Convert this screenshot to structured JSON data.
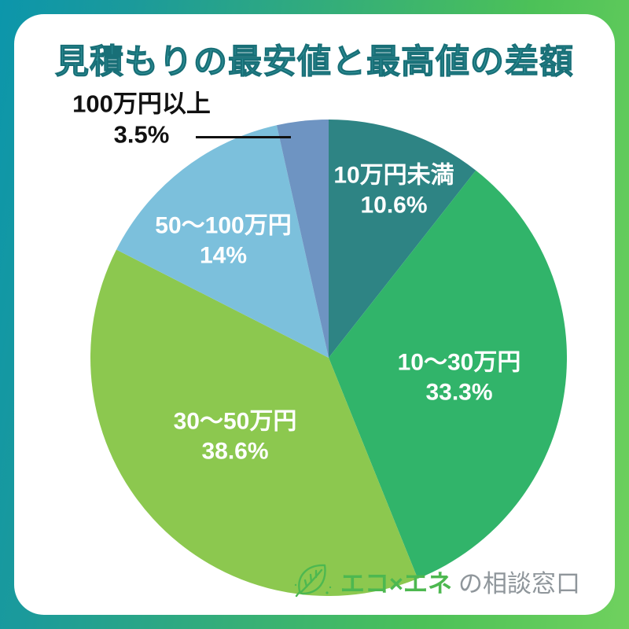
{
  "page": {
    "title": "見積もりの最安値と最高値の差額"
  },
  "chart_data": {
    "type": "pie",
    "title": "見積もりの最安値と最高値の差額",
    "unit": "%",
    "start_angle_deg": 0,
    "direction": "clockwise",
    "legend_position": "labels-on-slices",
    "segments": [
      {
        "label": "10万円未満",
        "value": 10.6,
        "display": "10.6%",
        "color": "#2e8484",
        "label_style": "inside-white"
      },
      {
        "label": "10〜30万円",
        "value": 33.3,
        "display": "33.3%",
        "color": "#31b46a",
        "label_style": "inside-white"
      },
      {
        "label": "30〜50万円",
        "value": 38.6,
        "display": "38.6%",
        "color": "#8cc84f",
        "label_style": "inside-white"
      },
      {
        "label": "50〜100万円",
        "value": 14,
        "display": "14%",
        "color": "#7cc0dc",
        "label_style": "inside-white"
      },
      {
        "label": "100万円以上",
        "value": 3.5,
        "display": "3.5%",
        "color": "#6e94c2",
        "label_style": "outside-black-callout"
      }
    ]
  },
  "footer": {
    "logo_icon": "leaf-icon",
    "brand_primary": "エコ×エネ",
    "brand_secondary": "の相談窓口",
    "brand_primary_color": "#4db850",
    "brand_secondary_color": "#8f969b"
  },
  "theme": {
    "border_gradient_start": "#0c96ab",
    "border_gradient_end": "#70d15e",
    "panel_background": "#ffffff",
    "title_color": "#2f9097",
    "outside_label_color": "#111111",
    "inside_label_color": "#ffffff"
  }
}
